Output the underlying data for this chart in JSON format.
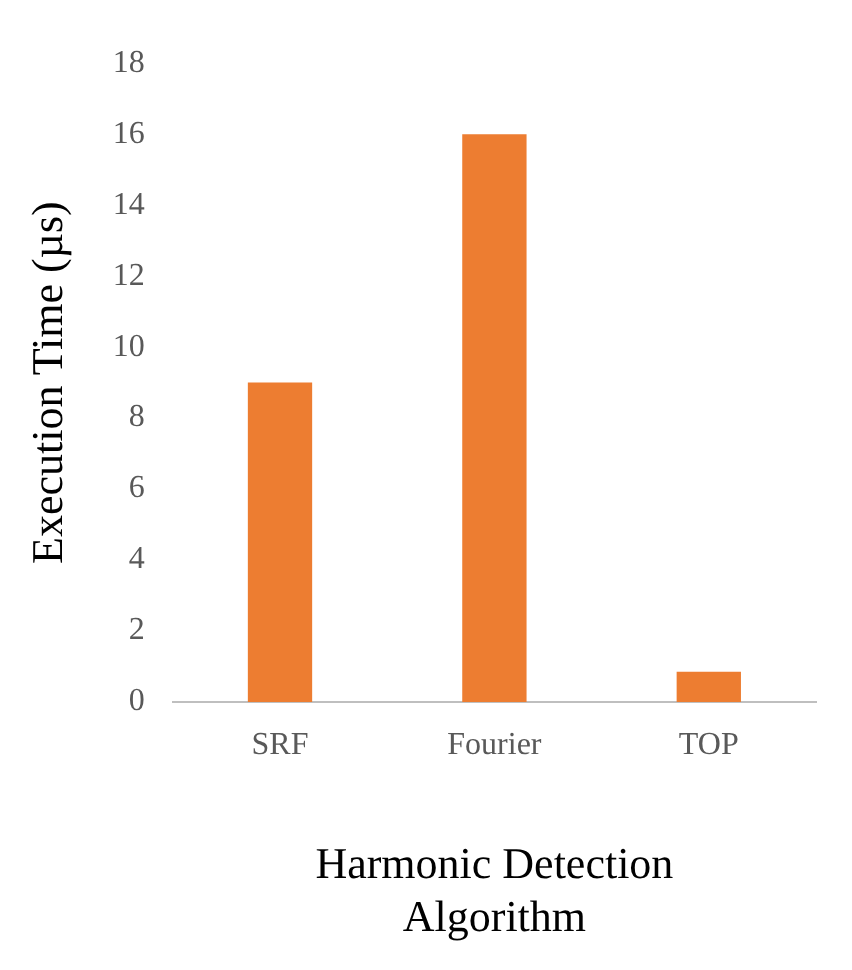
{
  "chart_data": {
    "type": "bar",
    "xlabel": "Harmonic Detection Algorithm",
    "ylabel": "Execution Time (µs)",
    "categories": [
      "SRF",
      "Fourier",
      "TOP"
    ],
    "values": [
      9,
      16,
      0.85
    ],
    "color": "#ed7d31",
    "ylim": [
      0,
      18
    ],
    "yticks": [
      0,
      2,
      4,
      6,
      8,
      10,
      12,
      14,
      16,
      18
    ],
    "grid": false,
    "legend": false
  }
}
